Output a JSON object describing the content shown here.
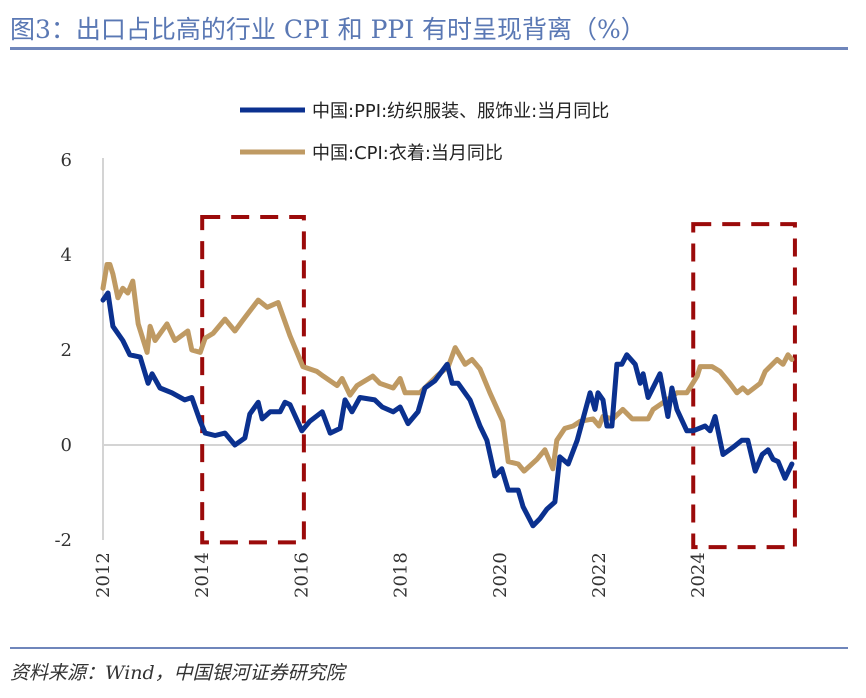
{
  "title": "图3：出口占比高的行业 CPI 和 PPI 有时呈现背离（%）",
  "source": "资料来源：Wind，中国银河证券研究院",
  "chart_data": {
    "type": "line",
    "title": "图3：出口占比高的行业 CPI 和 PPI 有时呈现背离（%）",
    "xlabel": "",
    "ylabel": "",
    "xlim": [
      2012,
      2026
    ],
    "ylim": [
      -2,
      6
    ],
    "x_ticks": [
      "2012",
      "2014",
      "2016",
      "2018",
      "2020",
      "2022",
      "2024"
    ],
    "y_ticks": [
      "6",
      "4",
      "2",
      "0",
      "-2"
    ],
    "grid": false,
    "legend_placement": "top-center",
    "series": [
      {
        "name": "中国:PPI:纺织服装、服饰业:当月同比",
        "color": "#0b318f",
        "points": [
          [
            2012.0,
            3.05
          ],
          [
            2012.1,
            3.2
          ],
          [
            2012.2,
            2.5
          ],
          [
            2012.4,
            2.2
          ],
          [
            2012.54,
            1.9
          ],
          [
            2012.75,
            1.85
          ],
          [
            2012.91,
            1.3
          ],
          [
            2012.99,
            1.5
          ],
          [
            2013.15,
            1.2
          ],
          [
            2013.39,
            1.1
          ],
          [
            2013.65,
            0.95
          ],
          [
            2013.79,
            1.0
          ],
          [
            2013.96,
            0.5
          ],
          [
            2014.06,
            0.25
          ],
          [
            2014.26,
            0.2
          ],
          [
            2014.46,
            0.25
          ],
          [
            2014.66,
            0.0
          ],
          [
            2014.86,
            0.15
          ],
          [
            2014.96,
            0.65
          ],
          [
            2015.13,
            0.9
          ],
          [
            2015.21,
            0.55
          ],
          [
            2015.37,
            0.7
          ],
          [
            2015.57,
            0.7
          ],
          [
            2015.67,
            0.9
          ],
          [
            2015.77,
            0.85
          ],
          [
            2016.01,
            0.3
          ],
          [
            2016.17,
            0.5
          ],
          [
            2016.42,
            0.7
          ],
          [
            2016.58,
            0.25
          ],
          [
            2016.78,
            0.35
          ],
          [
            2016.88,
            0.95
          ],
          [
            2017.02,
            0.7
          ],
          [
            2017.18,
            1.0
          ],
          [
            2017.48,
            0.95
          ],
          [
            2017.63,
            0.8
          ],
          [
            2017.85,
            0.7
          ],
          [
            2017.99,
            0.8
          ],
          [
            2018.15,
            0.45
          ],
          [
            2018.35,
            0.7
          ],
          [
            2018.49,
            1.2
          ],
          [
            2018.69,
            1.35
          ],
          [
            2018.94,
            1.7
          ],
          [
            2019.04,
            1.3
          ],
          [
            2019.16,
            1.3
          ],
          [
            2019.4,
            0.95
          ],
          [
            2019.6,
            0.4
          ],
          [
            2019.74,
            0.1
          ],
          [
            2019.9,
            -0.65
          ],
          [
            2020.04,
            -0.5
          ],
          [
            2020.17,
            -0.95
          ],
          [
            2020.37,
            -0.95
          ],
          [
            2020.47,
            -1.3
          ],
          [
            2020.67,
            -1.7
          ],
          [
            2020.81,
            -1.55
          ],
          [
            2020.95,
            -1.35
          ],
          [
            2021.11,
            -1.2
          ],
          [
            2021.21,
            -0.25
          ],
          [
            2021.38,
            -0.4
          ],
          [
            2021.56,
            0.1
          ],
          [
            2021.82,
            1.1
          ],
          [
            2021.92,
            0.75
          ],
          [
            2021.98,
            1.1
          ],
          [
            2022.08,
            0.95
          ],
          [
            2022.16,
            0.4
          ],
          [
            2022.26,
            0.4
          ],
          [
            2022.36,
            1.7
          ],
          [
            2022.46,
            1.7
          ],
          [
            2022.56,
            1.9
          ],
          [
            2022.73,
            1.7
          ],
          [
            2022.83,
            1.3
          ],
          [
            2022.89,
            1.5
          ],
          [
            2022.99,
            1.0
          ],
          [
            2023.23,
            1.5
          ],
          [
            2023.39,
            0.6
          ],
          [
            2023.47,
            1.2
          ],
          [
            2023.57,
            0.75
          ],
          [
            2023.77,
            0.3
          ],
          [
            2023.9,
            0.3
          ],
          [
            2024.14,
            0.4
          ],
          [
            2024.24,
            0.3
          ],
          [
            2024.34,
            0.6
          ],
          [
            2024.5,
            -0.2
          ],
          [
            2024.7,
            -0.05
          ],
          [
            2024.88,
            0.1
          ],
          [
            2025.0,
            0.1
          ],
          [
            2025.15,
            -0.55
          ],
          [
            2025.29,
            -0.2
          ],
          [
            2025.41,
            -0.1
          ],
          [
            2025.51,
            -0.3
          ],
          [
            2025.61,
            -0.35
          ],
          [
            2025.75,
            -0.7
          ],
          [
            2025.89,
            -0.4
          ]
        ]
      },
      {
        "name": "中国:CPI:衣着:当月同比",
        "color": "#bf9a63",
        "points": [
          [
            2012.0,
            3.3
          ],
          [
            2012.08,
            3.8
          ],
          [
            2012.14,
            3.8
          ],
          [
            2012.2,
            3.6
          ],
          [
            2012.3,
            3.1
          ],
          [
            2012.4,
            3.3
          ],
          [
            2012.5,
            3.2
          ],
          [
            2012.6,
            3.45
          ],
          [
            2012.71,
            2.55
          ],
          [
            2012.89,
            1.95
          ],
          [
            2012.95,
            2.5
          ],
          [
            2013.05,
            2.2
          ],
          [
            2013.29,
            2.55
          ],
          [
            2013.45,
            2.2
          ],
          [
            2013.71,
            2.4
          ],
          [
            2013.79,
            2.0
          ],
          [
            2013.96,
            1.95
          ],
          [
            2014.06,
            2.25
          ],
          [
            2014.22,
            2.35
          ],
          [
            2014.46,
            2.65
          ],
          [
            2014.66,
            2.4
          ],
          [
            2014.8,
            2.6
          ],
          [
            2015.13,
            3.05
          ],
          [
            2015.31,
            2.9
          ],
          [
            2015.53,
            3.0
          ],
          [
            2015.77,
            2.3
          ],
          [
            2016.03,
            1.65
          ],
          [
            2016.31,
            1.55
          ],
          [
            2016.44,
            1.45
          ],
          [
            2016.72,
            1.25
          ],
          [
            2016.82,
            1.4
          ],
          [
            2016.98,
            1.05
          ],
          [
            2017.12,
            1.25
          ],
          [
            2017.44,
            1.45
          ],
          [
            2017.58,
            1.3
          ],
          [
            2017.85,
            1.2
          ],
          [
            2017.99,
            1.4
          ],
          [
            2018.09,
            1.1
          ],
          [
            2018.39,
            1.1
          ],
          [
            2018.73,
            1.45
          ],
          [
            2018.96,
            1.65
          ],
          [
            2019.1,
            2.05
          ],
          [
            2019.3,
            1.7
          ],
          [
            2019.44,
            1.8
          ],
          [
            2019.6,
            1.6
          ],
          [
            2019.8,
            1.1
          ],
          [
            2020.06,
            0.5
          ],
          [
            2020.17,
            -0.35
          ],
          [
            2020.37,
            -0.4
          ],
          [
            2020.49,
            -0.55
          ],
          [
            2020.75,
            -0.3
          ],
          [
            2020.91,
            -0.1
          ],
          [
            2021.07,
            -0.5
          ],
          [
            2021.15,
            0.1
          ],
          [
            2021.31,
            0.35
          ],
          [
            2021.48,
            0.4
          ],
          [
            2021.62,
            0.5
          ],
          [
            2021.88,
            0.55
          ],
          [
            2022.0,
            0.4
          ],
          [
            2022.08,
            0.6
          ],
          [
            2022.28,
            0.55
          ],
          [
            2022.48,
            0.75
          ],
          [
            2022.67,
            0.55
          ],
          [
            2022.99,
            0.55
          ],
          [
            2023.09,
            0.75
          ],
          [
            2023.37,
            0.95
          ],
          [
            2023.57,
            1.1
          ],
          [
            2023.77,
            1.1
          ],
          [
            2023.98,
            1.45
          ],
          [
            2024.04,
            1.65
          ],
          [
            2024.28,
            1.65
          ],
          [
            2024.44,
            1.55
          ],
          [
            2024.64,
            1.3
          ],
          [
            2024.78,
            1.1
          ],
          [
            2024.9,
            1.2
          ],
          [
            2025.0,
            1.1
          ],
          [
            2025.25,
            1.3
          ],
          [
            2025.35,
            1.55
          ],
          [
            2025.59,
            1.8
          ],
          [
            2025.71,
            1.7
          ],
          [
            2025.81,
            1.9
          ],
          [
            2025.89,
            1.8
          ]
        ]
      }
    ],
    "annotations": [
      {
        "type": "dashed-box",
        "color": "#9b0a0a",
        "x_range": [
          2014.0,
          2016.05
        ],
        "y_range": [
          -2.05,
          4.8
        ]
      },
      {
        "type": "dashed-box",
        "color": "#9b0a0a",
        "x_range": [
          2023.9,
          2025.95
        ],
        "y_range": [
          -2.15,
          4.65
        ]
      }
    ]
  }
}
